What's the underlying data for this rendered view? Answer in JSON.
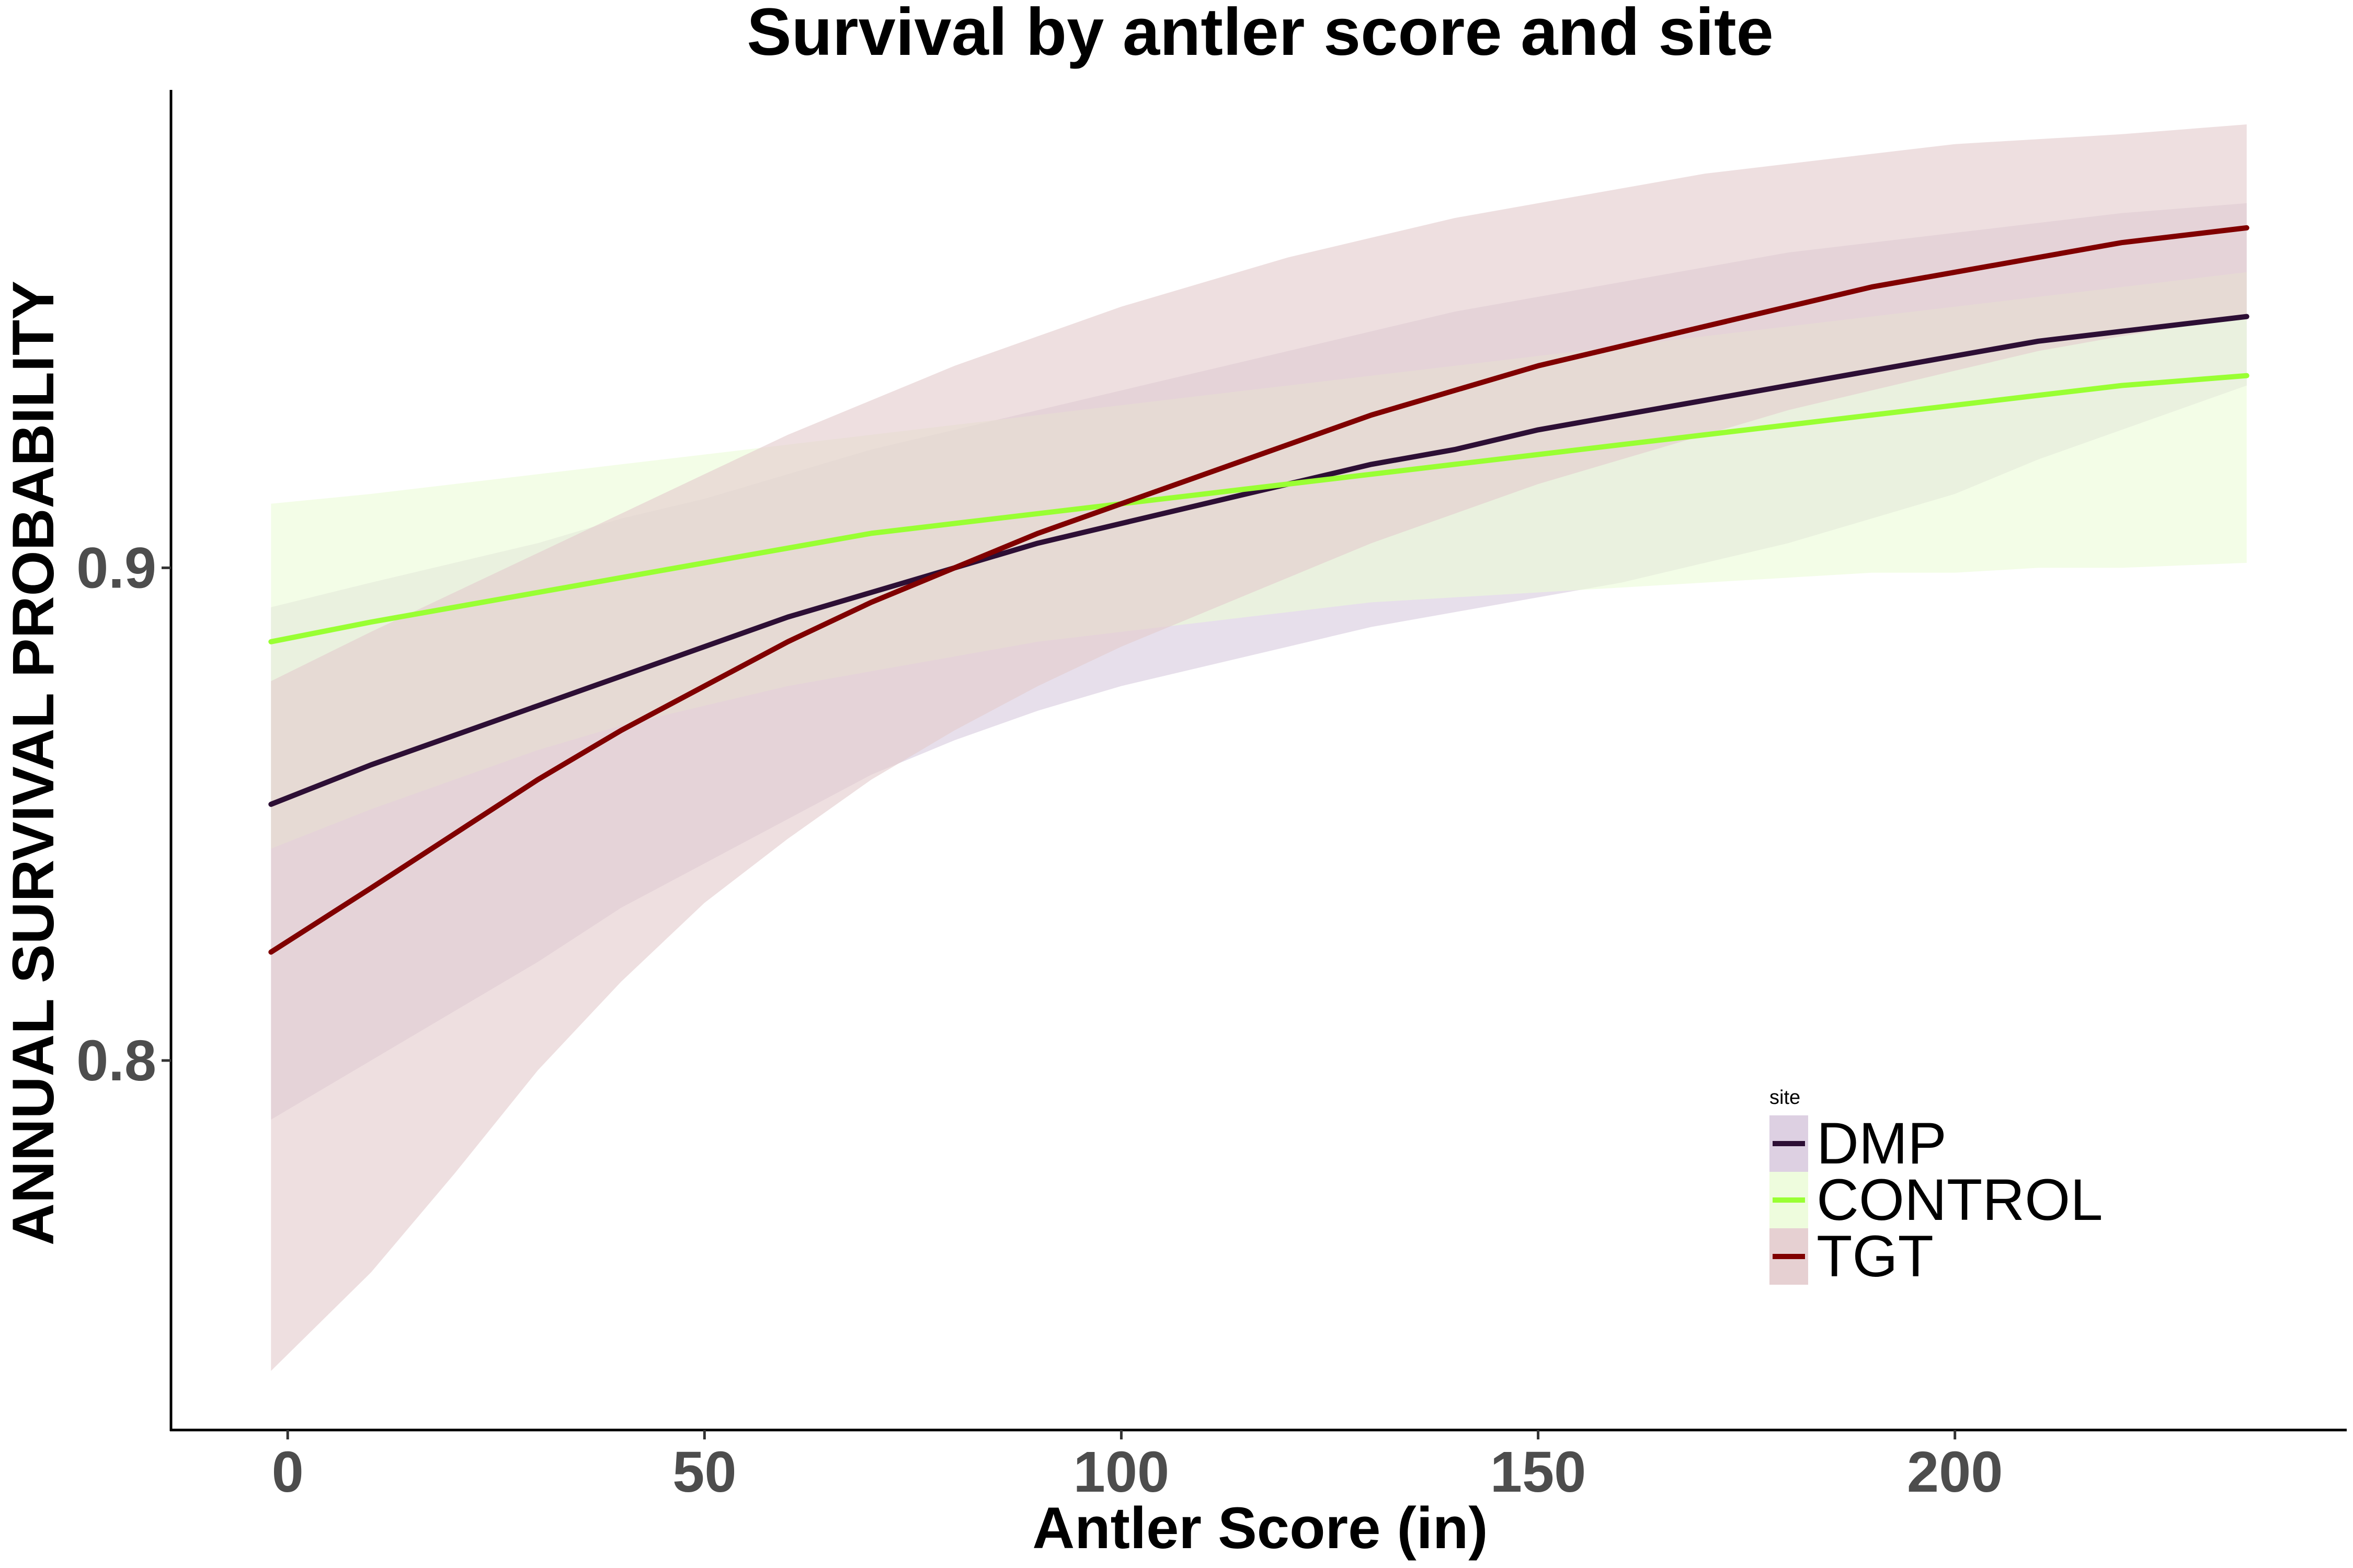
{
  "chart_data": {
    "type": "line",
    "title": "Survival by antler score and site",
    "xlabel": "Antler Score (in)",
    "ylabel": "ANNUAL SURVIVAL PROBABILITY",
    "xlim": [
      -14,
      247
    ],
    "ylim": [
      0.725,
      0.997
    ],
    "x_ticks": [
      0,
      50,
      100,
      150,
      200
    ],
    "x_tick_labels": [
      "0",
      "50",
      "100",
      "150",
      "200"
    ],
    "y_ticks": [
      0.8,
      0.9
    ],
    "y_tick_labels": [
      "0.8",
      "0.9"
    ],
    "grid": false,
    "legend": {
      "title": "site",
      "position": "bottom-right inside"
    },
    "x": [
      -2,
      10,
      20,
      30,
      40,
      50,
      60,
      70,
      80,
      90,
      100,
      110,
      120,
      130,
      140,
      150,
      160,
      170,
      180,
      190,
      200,
      210,
      220,
      235
    ],
    "series": [
      {
        "name": "DMP",
        "color": "#2d0f35",
        "fill_color": "#d9cbdf",
        "values": [
          0.852,
          0.86,
          0.866,
          0.872,
          0.878,
          0.884,
          0.89,
          0.895,
          0.9,
          0.905,
          0.909,
          0.913,
          0.917,
          0.921,
          0.924,
          0.928,
          0.931,
          0.934,
          0.937,
          0.94,
          0.943,
          0.946,
          0.948,
          0.951
        ],
        "lower": [
          0.788,
          0.8,
          0.81,
          0.82,
          0.831,
          0.84,
          0.849,
          0.858,
          0.865,
          0.871,
          0.876,
          0.88,
          0.884,
          0.888,
          0.891,
          0.894,
          0.897,
          0.901,
          0.905,
          0.91,
          0.915,
          0.922,
          0.928,
          0.937
        ],
        "upper": [
          0.892,
          0.897,
          0.901,
          0.905,
          0.91,
          0.914,
          0.919,
          0.924,
          0.928,
          0.932,
          0.936,
          0.94,
          0.944,
          0.948,
          0.952,
          0.955,
          0.958,
          0.961,
          0.964,
          0.966,
          0.968,
          0.97,
          0.972,
          0.974
        ]
      },
      {
        "name": "CONTROL",
        "color": "#99ff33",
        "fill_color": "#ecfcd9",
        "values": [
          0.885,
          0.889,
          0.892,
          0.895,
          0.898,
          0.901,
          0.904,
          0.907,
          0.909,
          0.911,
          0.913,
          0.915,
          0.917,
          0.919,
          0.921,
          0.923,
          0.925,
          0.927,
          0.929,
          0.931,
          0.933,
          0.935,
          0.937,
          0.939
        ],
        "lower": [
          0.843,
          0.851,
          0.857,
          0.863,
          0.868,
          0.872,
          0.876,
          0.879,
          0.882,
          0.885,
          0.887,
          0.889,
          0.891,
          0.893,
          0.894,
          0.895,
          0.896,
          0.897,
          0.898,
          0.899,
          0.899,
          0.9,
          0.9,
          0.901
        ],
        "upper": [
          0.913,
          0.915,
          0.917,
          0.919,
          0.921,
          0.923,
          0.925,
          0.927,
          0.929,
          0.931,
          0.933,
          0.935,
          0.937,
          0.939,
          0.941,
          0.943,
          0.945,
          0.947,
          0.949,
          0.951,
          0.953,
          0.955,
          0.957,
          0.96
        ]
      },
      {
        "name": "TGT",
        "color": "#800000",
        "fill_color": "#e3cbcd",
        "values": [
          0.822,
          0.835,
          0.846,
          0.857,
          0.867,
          0.876,
          0.885,
          0.893,
          0.9,
          0.907,
          0.913,
          0.919,
          0.925,
          0.931,
          0.936,
          0.941,
          0.945,
          0.949,
          0.953,
          0.957,
          0.96,
          0.963,
          0.966,
          0.969
        ],
        "lower": [
          0.737,
          0.757,
          0.777,
          0.798,
          0.816,
          0.832,
          0.845,
          0.857,
          0.867,
          0.876,
          0.884,
          0.891,
          0.898,
          0.905,
          0.911,
          0.917,
          0.922,
          0.927,
          0.932,
          0.936,
          0.94,
          0.944,
          0.947,
          0.951
        ],
        "upper": [
          0.877,
          0.887,
          0.895,
          0.903,
          0.911,
          0.919,
          0.927,
          0.934,
          0.941,
          0.947,
          0.953,
          0.958,
          0.963,
          0.967,
          0.971,
          0.974,
          0.977,
          0.98,
          0.982,
          0.984,
          0.986,
          0.987,
          0.988,
          0.99
        ]
      }
    ]
  }
}
